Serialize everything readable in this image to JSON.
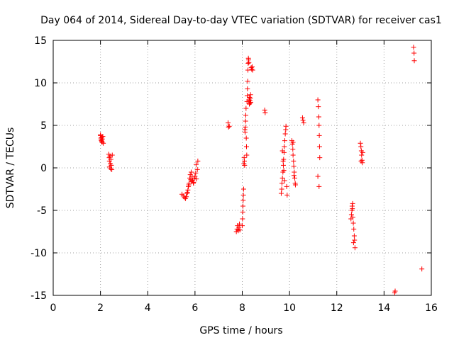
{
  "chart_data": {
    "type": "scatter",
    "title": "Day 064 of 2014, Sidereal Day-to-day VTEC variation (SDTVAR) for receiver cas1",
    "xlabel": "GPS time / hours",
    "ylabel": "SDTVAR / TECUs",
    "xlim": [
      0,
      16
    ],
    "ylim": [
      -15,
      15
    ],
    "xticks": [
      0,
      2,
      4,
      6,
      8,
      10,
      12,
      14,
      16
    ],
    "yticks": [
      -15,
      -10,
      -5,
      0,
      5,
      10,
      15
    ],
    "grid": true,
    "marker": "+",
    "color": "#ff0000",
    "series": [
      {
        "name": "SDTVAR",
        "x": [
          2.0,
          2.02,
          2.04,
          2.05,
          2.07,
          2.08,
          2.1,
          2.12,
          2.0,
          2.03,
          2.06,
          2.35,
          2.37,
          2.38,
          2.4,
          2.42,
          2.44,
          2.46,
          2.48,
          2.5,
          2.38,
          2.43,
          5.45,
          5.5,
          5.55,
          5.6,
          5.63,
          5.66,
          5.7,
          5.72,
          5.75,
          5.78,
          5.8,
          5.82,
          5.85,
          5.88,
          5.9,
          5.93,
          5.96,
          6.0,
          6.03,
          6.06,
          6.1,
          6.12,
          5.68,
          5.74,
          5.84,
          5.94,
          6.05,
          7.4,
          7.42,
          7.45,
          7.75,
          7.78,
          7.8,
          7.83,
          7.86,
          7.88,
          7.9,
          8.0,
          8.01,
          8.02,
          8.03,
          8.04,
          8.05,
          8.06,
          8.07,
          8.08,
          8.09,
          8.1,
          8.11,
          8.12,
          8.13,
          8.14,
          8.15,
          8.16,
          8.17,
          8.18,
          8.19,
          8.2,
          8.21,
          8.22,
          8.23,
          8.24,
          8.25,
          8.26,
          8.27,
          8.28,
          8.29,
          8.3,
          8.31,
          8.32,
          8.33,
          8.34,
          8.35,
          8.36,
          8.38,
          8.4,
          8.42,
          8.44,
          8.95,
          8.97,
          9.65,
          9.67,
          9.68,
          9.7,
          9.72,
          9.74,
          9.75,
          9.77,
          9.78,
          9.8,
          9.82,
          9.84,
          9.85,
          9.7,
          9.73,
          9.76,
          9.79,
          9.88,
          9.9,
          10.1,
          10.12,
          10.14,
          10.15,
          10.17,
          10.18,
          10.2,
          10.22,
          10.24,
          10.25,
          10.15,
          10.19,
          10.55,
          10.57,
          10.6,
          11.2,
          11.22,
          11.24,
          11.25,
          11.26,
          11.27,
          11.28,
          11.2,
          11.25,
          12.6,
          12.62,
          12.64,
          12.65,
          12.67,
          12.68,
          12.7,
          12.72,
          12.74,
          12.75,
          12.77,
          12.66,
          12.71,
          13.0,
          13.02,
          13.04,
          13.05,
          13.07,
          13.08,
          13.1,
          13.03,
          14.45,
          14.47,
          15.25,
          15.27,
          15.28,
          15.6
        ],
        "y": [
          3.8,
          3.5,
          3.2,
          3.6,
          3.0,
          3.4,
          3.7,
          2.9,
          3.9,
          3.3,
          3.1,
          1.6,
          1.2,
          0.8,
          1.4,
          0.5,
          1.0,
          0.3,
          -0.2,
          1.5,
          0.1,
          -0.1,
          -3.1,
          -3.3,
          -3.5,
          -3.6,
          -3.4,
          -3.0,
          -2.6,
          -2.2,
          -1.8,
          -1.2,
          -0.8,
          -1.4,
          -1.6,
          -1.0,
          -1.5,
          -1.8,
          -1.2,
          -1.0,
          -0.6,
          -1.3,
          -0.2,
          0.8,
          -2.9,
          -2.0,
          -0.5,
          -1.7,
          0.4,
          5.3,
          4.8,
          4.9,
          -7.5,
          -7.2,
          -6.8,
          -7.4,
          -7.0,
          -6.6,
          -7.3,
          -6.8,
          -6.0,
          -5.2,
          -4.5,
          -3.8,
          -3.2,
          -2.5,
          0.5,
          1.2,
          0.8,
          0.3,
          4.5,
          4.2,
          4.8,
          5.5,
          6.2,
          7.0,
          3.5,
          2.5,
          1.5,
          7.8,
          8.5,
          9.3,
          10.2,
          11.5,
          12.3,
          12.9,
          12.7,
          12.4,
          8.0,
          7.5,
          8.3,
          7.6,
          7.9,
          8.2,
          8.6,
          7.7,
          11.8,
          11.6,
          11.9,
          11.5,
          6.8,
          6.5,
          -3.0,
          -2.5,
          -1.8,
          -1.2,
          -0.5,
          0.3,
          1.0,
          1.8,
          2.5,
          3.2,
          4.0,
          4.5,
          4.9,
          2.0,
          0.8,
          -0.3,
          -1.5,
          -2.2,
          -3.2,
          3.2,
          2.8,
          2.2,
          1.5,
          0.8,
          0.2,
          -0.5,
          -1.2,
          -1.8,
          -2.0,
          3.0,
          -0.9,
          5.9,
          5.6,
          5.3,
          8.0,
          7.2,
          6.0,
          5.0,
          3.8,
          2.5,
          1.2,
          -1.0,
          -2.2,
          -6.0,
          -5.5,
          -5.0,
          -4.5,
          -4.2,
          -5.8,
          -6.5,
          -7.2,
          -8.0,
          -8.5,
          -9.4,
          -4.8,
          -8.8,
          2.9,
          2.5,
          2.0,
          1.5,
          0.9,
          0.6,
          1.8,
          0.8,
          -14.7,
          -14.5,
          14.2,
          13.5,
          12.6,
          -11.9
        ]
      }
    ]
  }
}
